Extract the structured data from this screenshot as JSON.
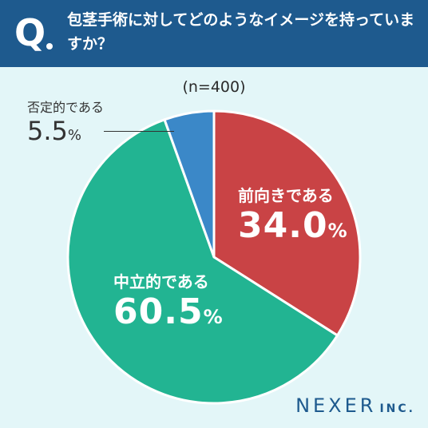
{
  "header": {
    "q_mark": "Q",
    "question": "包茎手術に対してどのようなイメージを持っていますか？"
  },
  "sample": "(n=400)",
  "chart_data": {
    "type": "pie",
    "start_angle": "12 o'clock, clockwise",
    "slices": [
      {
        "label": "前向きである",
        "value": 34.0,
        "display": "34.0",
        "unit": "%",
        "color": "#c94345"
      },
      {
        "label": "中立的である",
        "value": 60.5,
        "display": "60.5",
        "unit": "%",
        "color": "#22b492"
      },
      {
        "label": "否定的である",
        "value": 5.5,
        "display": "5.5",
        "unit": "%",
        "color": "#3b88c8"
      }
    ]
  },
  "logo": {
    "main": "NEXER",
    "sub": "INC."
  }
}
